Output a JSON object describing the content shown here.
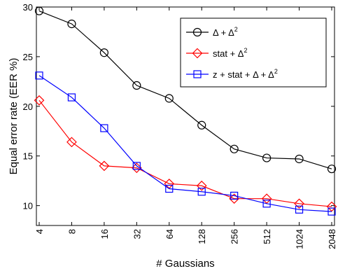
{
  "chart_data": {
    "type": "line",
    "categories": [
      "4",
      "8",
      "16",
      "32",
      "64",
      "128",
      "256",
      "512",
      "1024",
      "2048"
    ],
    "xlabel": "# Gaussians",
    "ylabel": "Equal error rate (EER %)",
    "ylim": [
      8,
      30
    ],
    "yticks": [
      10,
      15,
      20,
      25,
      30
    ],
    "grid": false,
    "legend_position": "top-right",
    "series": [
      {
        "name": "Δ + Δ²",
        "legend": {
          "base": "Δ + Δ",
          "sup": "2"
        },
        "color": "#000000",
        "marker": "circle",
        "values": [
          29.6,
          28.3,
          25.4,
          22.1,
          20.8,
          18.1,
          15.7,
          14.8,
          14.7,
          13.7
        ]
      },
      {
        "name": "stat + Δ²",
        "legend": {
          "base": "stat + Δ",
          "sup": "2"
        },
        "color": "#ff0000",
        "marker": "diamond",
        "values": [
          20.6,
          16.4,
          14.0,
          13.8,
          12.2,
          12.0,
          10.7,
          10.7,
          10.2,
          9.9
        ]
      },
      {
        "name": "z + stat + Δ + Δ²",
        "legend": {
          "base": "z + stat + Δ + Δ",
          "sup": "2"
        },
        "color": "#0000ff",
        "marker": "square",
        "values": [
          23.1,
          20.9,
          17.8,
          14.0,
          11.7,
          11.4,
          11.0,
          10.2,
          9.6,
          9.4
        ]
      }
    ]
  }
}
